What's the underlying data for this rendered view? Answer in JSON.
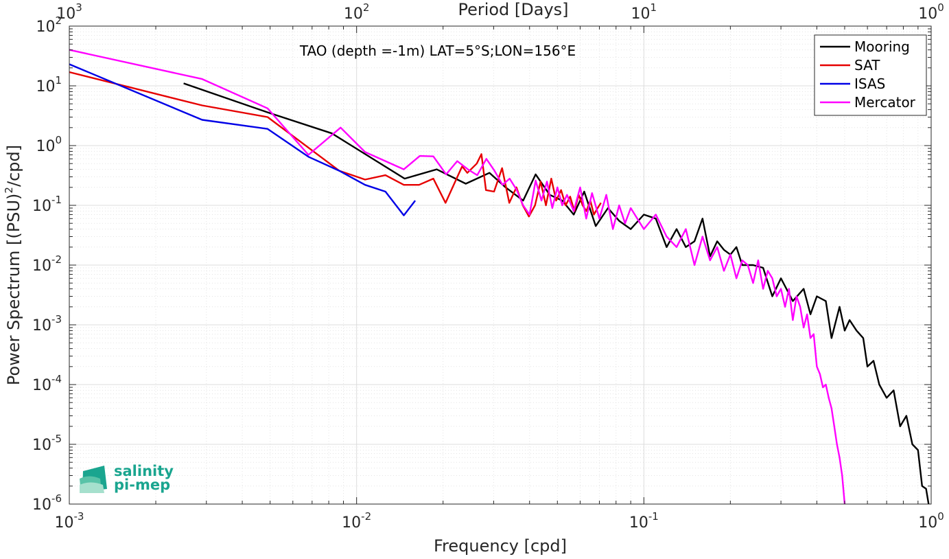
{
  "chart_data": {
    "type": "line",
    "title": "",
    "annotation": "TAO (depth =-1m) LAT=5°S;LON=156°E",
    "xlabel": "Frequency [cpd]",
    "ylabel_main": "Power Spectrum [(PSU)",
    "ylabel_sup": "2",
    "ylabel_tail": "/cpd]",
    "top_xlabel": "Period [Days]",
    "x_scale": "log",
    "y_scale": "log",
    "xlim": [
      0.001,
      1
    ],
    "ylim": [
      1e-06,
      100
    ],
    "grid": true,
    "legend_position": "top-right",
    "x_ticks": [
      {
        "value": 0.001,
        "base": "10",
        "exp": "-3"
      },
      {
        "value": 0.01,
        "base": "10",
        "exp": "-2"
      },
      {
        "value": 0.1,
        "base": "10",
        "exp": "-1"
      },
      {
        "value": 1,
        "base": "10",
        "exp": "0"
      }
    ],
    "top_ticks": [
      {
        "value": 0.001,
        "base": "10",
        "exp": "3"
      },
      {
        "value": 0.01,
        "base": "10",
        "exp": "2"
      },
      {
        "value": 0.1,
        "base": "10",
        "exp": "1"
      },
      {
        "value": 1,
        "base": "10",
        "exp": "0"
      }
    ],
    "y_ticks": [
      {
        "value": 100,
        "base": "10",
        "exp": "2"
      },
      {
        "value": 10,
        "base": "10",
        "exp": "1"
      },
      {
        "value": 1,
        "base": "10",
        "exp": "0"
      },
      {
        "value": 0.1,
        "base": "10",
        "exp": "-1"
      },
      {
        "value": 0.01,
        "base": "10",
        "exp": "-2"
      },
      {
        "value": 0.001,
        "base": "10",
        "exp": "-3"
      },
      {
        "value": 0.0001,
        "base": "10",
        "exp": "-4"
      },
      {
        "value": 1e-05,
        "base": "10",
        "exp": "-5"
      },
      {
        "value": 1e-06,
        "base": "10",
        "exp": "-6"
      }
    ],
    "series": [
      {
        "name": "Mooring",
        "color": "#000000",
        "x": [
          0.0025,
          0.0049,
          0.0082,
          0.0147,
          0.019,
          0.024,
          0.029,
          0.033,
          0.038,
          0.042,
          0.047,
          0.052,
          0.057,
          0.062,
          0.068,
          0.075,
          0.082,
          0.09,
          0.1,
          0.11,
          0.12,
          0.13,
          0.14,
          0.15,
          0.16,
          0.17,
          0.18,
          0.19,
          0.2,
          0.21,
          0.22,
          0.24,
          0.26,
          0.28,
          0.3,
          0.33,
          0.36,
          0.38,
          0.4,
          0.43,
          0.45,
          0.48,
          0.5,
          0.52,
          0.55,
          0.58,
          0.6,
          0.63,
          0.66,
          0.7,
          0.74,
          0.78,
          0.82,
          0.86,
          0.9,
          0.93,
          0.96,
          0.98
        ],
        "y": [
          11,
          3.6,
          1.6,
          0.28,
          0.4,
          0.23,
          0.35,
          0.2,
          0.12,
          0.33,
          0.15,
          0.12,
          0.07,
          0.17,
          0.045,
          0.09,
          0.055,
          0.04,
          0.07,
          0.06,
          0.02,
          0.04,
          0.02,
          0.025,
          0.06,
          0.014,
          0.025,
          0.018,
          0.015,
          0.02,
          0.01,
          0.01,
          0.009,
          0.003,
          0.006,
          0.0025,
          0.004,
          0.0015,
          0.003,
          0.0025,
          0.0006,
          0.002,
          0.0008,
          0.0012,
          0.0008,
          0.0006,
          0.0002,
          0.00025,
          0.0001,
          6e-05,
          8e-05,
          2e-05,
          3e-05,
          1e-05,
          8e-06,
          2e-06,
          1.8e-06,
          1e-06
        ]
      },
      {
        "name": "SAT",
        "color": "#e60000",
        "x": [
          0.001,
          0.0029,
          0.0049,
          0.0087,
          0.0107,
          0.0126,
          0.0146,
          0.0165,
          0.0185,
          0.0204,
          0.0233,
          0.0243,
          0.0262,
          0.0272,
          0.0282,
          0.0301,
          0.0321,
          0.034,
          0.036,
          0.0379,
          0.0398,
          0.0418,
          0.0437,
          0.0456,
          0.0476,
          0.0495,
          0.0515,
          0.0534,
          0.0554,
          0.0573,
          0.0593,
          0.0612,
          0.0631,
          0.0651,
          0.067,
          0.069,
          0.0709
        ],
        "y": [
          17,
          4.7,
          3.0,
          0.38,
          0.27,
          0.32,
          0.22,
          0.22,
          0.28,
          0.11,
          0.45,
          0.35,
          0.5,
          0.72,
          0.18,
          0.17,
          0.42,
          0.11,
          0.2,
          0.1,
          0.065,
          0.1,
          0.25,
          0.1,
          0.28,
          0.12,
          0.18,
          0.1,
          0.14,
          0.08,
          0.15,
          0.1,
          0.08,
          0.12,
          0.07,
          0.09,
          0.11
        ]
      },
      {
        "name": "ISAS",
        "color": "#0000e6",
        "x": [
          0.001,
          0.0029,
          0.0049,
          0.0068,
          0.0087,
          0.0107,
          0.0126,
          0.0146,
          0.016
        ],
        "y": [
          23,
          2.7,
          1.9,
          0.65,
          0.38,
          0.22,
          0.17,
          0.068,
          0.12
        ]
      },
      {
        "name": "Mercator",
        "color": "#ff00ff",
        "x": [
          0.001,
          0.0029,
          0.0049,
          0.0068,
          0.0088,
          0.0107,
          0.0146,
          0.0166,
          0.0185,
          0.0205,
          0.0224,
          0.0244,
          0.0263,
          0.0283,
          0.0302,
          0.0322,
          0.0341,
          0.0361,
          0.038,
          0.04,
          0.042,
          0.044,
          0.046,
          0.048,
          0.05,
          0.052,
          0.054,
          0.057,
          0.06,
          0.063,
          0.066,
          0.07,
          0.074,
          0.078,
          0.082,
          0.086,
          0.09,
          0.1,
          0.11,
          0.12,
          0.13,
          0.14,
          0.15,
          0.16,
          0.17,
          0.18,
          0.19,
          0.2,
          0.21,
          0.22,
          0.23,
          0.24,
          0.25,
          0.26,
          0.27,
          0.28,
          0.29,
          0.3,
          0.31,
          0.32,
          0.33,
          0.34,
          0.35,
          0.36,
          0.37,
          0.38,
          0.39,
          0.4,
          0.41,
          0.42,
          0.43,
          0.44,
          0.45,
          0.46,
          0.47,
          0.48,
          0.49,
          0.5
        ],
        "y": [
          40,
          13,
          4.2,
          0.7,
          2.0,
          0.78,
          0.4,
          0.67,
          0.66,
          0.33,
          0.55,
          0.4,
          0.32,
          0.6,
          0.38,
          0.22,
          0.28,
          0.18,
          0.1,
          0.07,
          0.26,
          0.12,
          0.25,
          0.09,
          0.2,
          0.1,
          0.15,
          0.08,
          0.2,
          0.06,
          0.16,
          0.06,
          0.15,
          0.04,
          0.1,
          0.05,
          0.09,
          0.04,
          0.07,
          0.03,
          0.02,
          0.04,
          0.01,
          0.03,
          0.012,
          0.02,
          0.008,
          0.015,
          0.006,
          0.012,
          0.01,
          0.005,
          0.012,
          0.004,
          0.008,
          0.006,
          0.003,
          0.004,
          0.002,
          0.004,
          0.0012,
          0.003,
          0.002,
          0.0009,
          0.0015,
          0.0006,
          0.0007,
          0.0002,
          0.00015,
          9e-05,
          0.0001,
          6e-05,
          4e-05,
          2e-05,
          1e-05,
          6e-06,
          3e-06,
          1e-06
        ]
      }
    ]
  },
  "logo": {
    "line1": "salinity",
    "line2": "pi-mep"
  }
}
